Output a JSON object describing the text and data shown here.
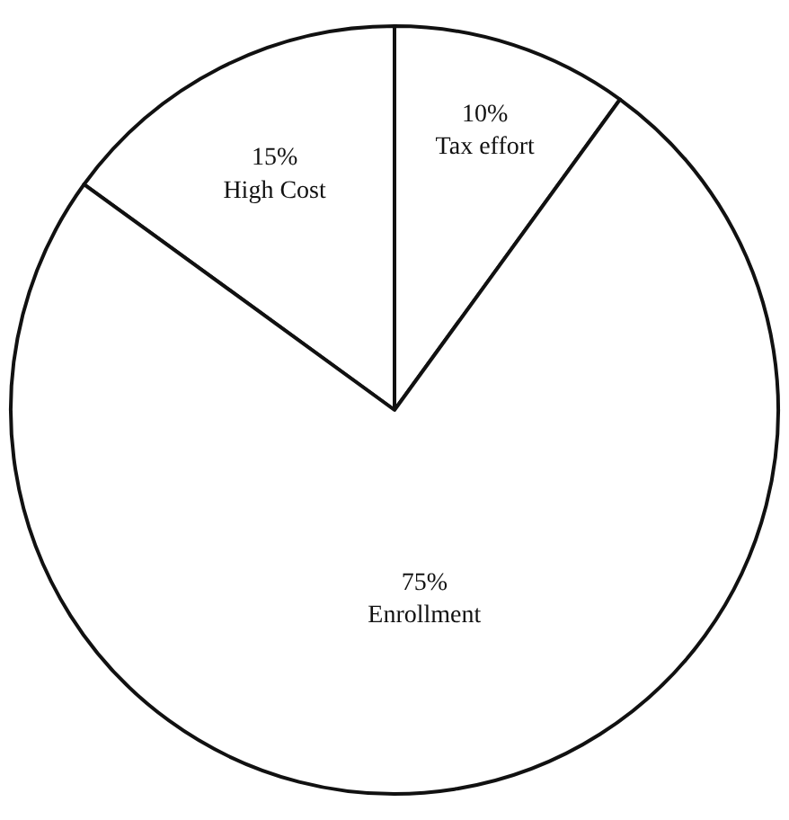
{
  "chart_data": {
    "type": "pie",
    "categories": [
      "Tax effort",
      "High Cost",
      "Enrollment"
    ],
    "values": [
      10,
      15,
      75
    ],
    "value_labels": [
      "10%",
      "15%",
      "75%"
    ],
    "colors": [
      "#ffffff",
      "#ffffff",
      "#ffffff"
    ],
    "legend": false
  }
}
